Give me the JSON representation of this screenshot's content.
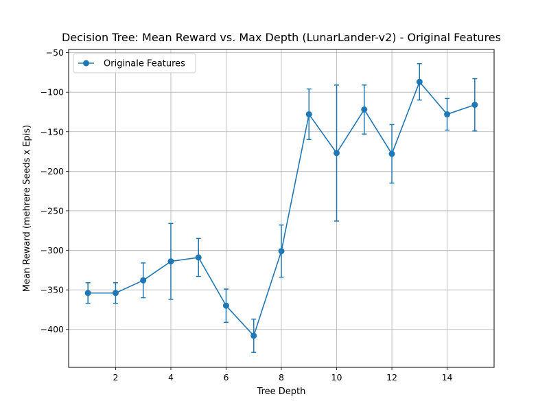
{
  "chart_data": {
    "type": "line",
    "title": "Decision Tree: Mean Reward vs. Max Depth (LunarLander-v2) - Original Features",
    "xlabel": "Tree Depth",
    "ylabel": "Mean Reward (mehrere Seeds x Epis)",
    "xlim": [
      0.3,
      15.7
    ],
    "ylim": [
      -448,
      -46
    ],
    "x_ticks": [
      2,
      4,
      6,
      8,
      10,
      12,
      14
    ],
    "y_ticks": [
      -400,
      -350,
      -300,
      -250,
      -200,
      -150,
      -100,
      -50
    ],
    "grid": true,
    "legend_position": "top-left",
    "series": [
      {
        "name": "Originale Features",
        "color": "#1f77b4",
        "x": [
          1,
          2,
          3,
          4,
          5,
          6,
          7,
          8,
          9,
          10,
          11,
          12,
          13,
          14,
          15
        ],
        "y": [
          -354,
          -354,
          -338,
          -314,
          -309,
          -370,
          -408,
          -301,
          -128,
          -177,
          -122,
          -178,
          -87,
          -128,
          -116
        ],
        "err": [
          13,
          13,
          22,
          48,
          24,
          21,
          21,
          33,
          32,
          86,
          31,
          37,
          23,
          20,
          33
        ]
      }
    ]
  }
}
